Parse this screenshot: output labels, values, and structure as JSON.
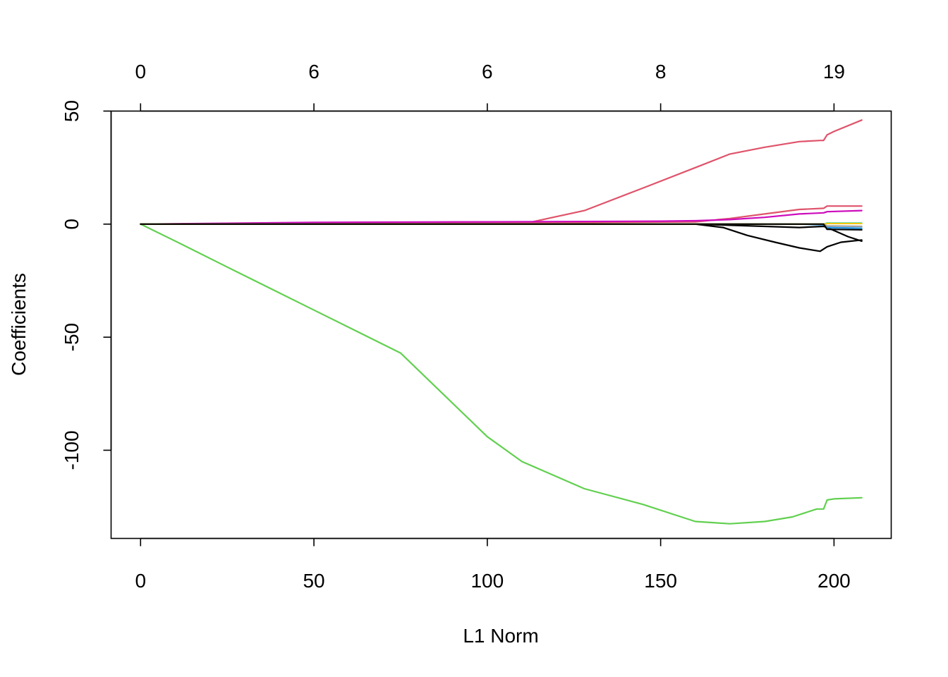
{
  "chart_data": {
    "type": "line",
    "title": "",
    "xlabel": "L1 Norm",
    "ylabel": "Coefficients",
    "xlim": [
      -8.5,
      216.5
    ],
    "ylim": [
      -139,
      50
    ],
    "x_ticks": [
      0,
      50,
      100,
      150,
      200
    ],
    "x_tick_labels": [
      "0",
      "50",
      "100",
      "150",
      "200"
    ],
    "y_ticks": [
      -100,
      -50,
      0,
      50
    ],
    "y_tick_labels": [
      "-100",
      "-50",
      "0",
      "50"
    ],
    "top_ticks": [
      0,
      50,
      100,
      150,
      200
    ],
    "top_tick_labels": [
      "0",
      "6",
      "6",
      "8",
      "19"
    ],
    "grid": false,
    "legend": "none",
    "series": [
      {
        "color": "#61D04F",
        "x": [
          0,
          12,
          25,
          50,
          75,
          100,
          110,
          128,
          145,
          160,
          170,
          180,
          188,
          195,
          197,
          198,
          200,
          208
        ],
        "y": [
          0,
          -9,
          -19,
          -38,
          -57,
          -94,
          -105,
          -117,
          -124,
          -131.5,
          -132.5,
          -131.5,
          -129.5,
          -126,
          -126,
          -122,
          -121.5,
          -121
        ]
      },
      {
        "color": "#DF536B",
        "x": [
          0,
          50,
          100,
          113,
          128,
          145,
          160,
          170,
          180,
          190,
          196,
          197,
          198,
          200,
          208
        ],
        "y": [
          0,
          0.5,
          1,
          1,
          6,
          16,
          25,
          31,
          34,
          36.5,
          37,
          37,
          39.5,
          41,
          46
        ]
      },
      {
        "color": "#DF536B",
        "x": [
          0,
          100,
          160,
          170,
          180,
          190,
          197,
          198,
          208
        ],
        "y": [
          0,
          0.5,
          1,
          2.5,
          4.5,
          6.5,
          7,
          8,
          8
        ]
      },
      {
        "color": "#CD0BBC",
        "x": [
          0,
          50,
          100,
          150,
          160,
          170,
          180,
          190,
          197,
          198,
          208
        ],
        "y": [
          0,
          0.8,
          1,
          1.3,
          1.5,
          2,
          3,
          4.5,
          5,
          5.5,
          6
        ]
      },
      {
        "color": "#000000",
        "x": [
          0,
          100,
          160,
          168,
          175,
          183,
          190,
          196,
          198,
          202,
          208
        ],
        "y": [
          0,
          0,
          0,
          -1.5,
          -5,
          -8,
          -10.5,
          -12,
          -10,
          -8,
          -7
        ]
      },
      {
        "color": "#000000",
        "x": [
          0,
          100,
          160,
          170,
          180,
          190,
          197,
          198,
          201,
          204,
          208
        ],
        "y": [
          0,
          0,
          0,
          -0.5,
          -1,
          -1.5,
          -1,
          -1.5,
          -3.5,
          -5.5,
          -7.5
        ]
      },
      {
        "color": "#2297E6",
        "x": [
          0,
          190,
          197,
          198,
          208
        ],
        "y": [
          0,
          0,
          -0.3,
          -1.5,
          -1.8
        ]
      },
      {
        "color": "#28E2E5",
        "x": [
          0,
          197,
          198,
          208
        ],
        "y": [
          0,
          0,
          0.5,
          0.5
        ]
      },
      {
        "color": "#9E9E9E",
        "x": [
          0,
          197,
          198,
          208
        ],
        "y": [
          0,
          0,
          -0.8,
          -1
        ]
      },
      {
        "color": "#F5C710",
        "x": [
          0,
          197,
          198,
          208
        ],
        "y": [
          0,
          0,
          0.3,
          0.3
        ]
      },
      {
        "color": "#000000",
        "x": [
          0,
          180,
          197,
          198,
          208
        ],
        "y": [
          0,
          0,
          0,
          -2.3,
          -2.5
        ]
      }
    ]
  }
}
